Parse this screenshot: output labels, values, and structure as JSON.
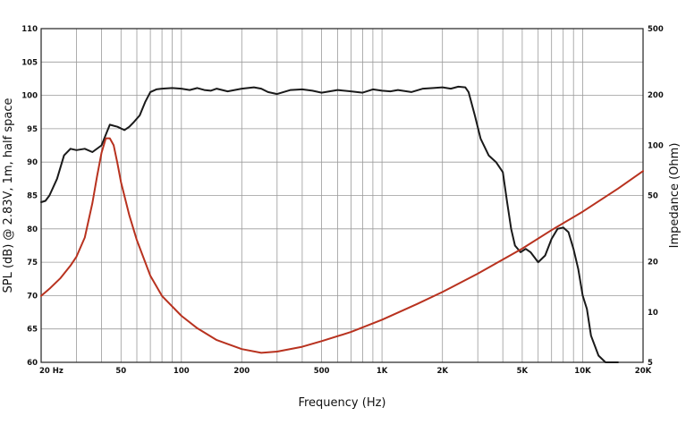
{
  "chart_data": {
    "type": "line",
    "xlabel": "Frequency (Hz)",
    "ylabel": "SPL (dB) @ 2.83V, 1m, half space",
    "y2label": "Impedance (Ohm)",
    "x_scale": "log",
    "xlim": [
      20,
      20000
    ],
    "ylim": [
      60,
      110
    ],
    "y2_scale": "log",
    "y2lim": [
      5,
      500
    ],
    "grid": true,
    "x_tick_labels": [
      {
        "value": 20,
        "label": "20  Hz"
      },
      {
        "value": 50,
        "label": "50"
      },
      {
        "value": 100,
        "label": "100"
      },
      {
        "value": 200,
        "label": "200"
      },
      {
        "value": 500,
        "label": "500"
      },
      {
        "value": 1000,
        "label": "1K"
      },
      {
        "value": 2000,
        "label": "2K"
      },
      {
        "value": 5000,
        "label": "5K"
      },
      {
        "value": 10000,
        "label": "10K"
      },
      {
        "value": 20000,
        "label": "20K"
      }
    ],
    "x_gridlines": [
      20,
      30,
      40,
      50,
      60,
      70,
      80,
      90,
      100,
      200,
      300,
      400,
      500,
      600,
      700,
      800,
      900,
      1000,
      2000,
      3000,
      4000,
      5000,
      6000,
      7000,
      8000,
      9000,
      10000,
      20000
    ],
    "y_ticks": [
      {
        "value": 110,
        "label": "110"
      },
      {
        "value": 105,
        "label": "105"
      },
      {
        "value": 100,
        "label": "100"
      },
      {
        "value": 95,
        "label": "95"
      },
      {
        "value": 90,
        "label": "90"
      },
      {
        "value": 85,
        "label": "85"
      },
      {
        "value": 80,
        "label": "80"
      },
      {
        "value": 75,
        "label": "75"
      },
      {
        "value": 70,
        "label": "70"
      },
      {
        "value": 65,
        "label": "65"
      },
      {
        "value": 60,
        "label": "60"
      }
    ],
    "y2_ticks": [
      {
        "value": 500,
        "label": "500"
      },
      {
        "value": 200,
        "label": "200"
      },
      {
        "value": 100,
        "label": "100"
      },
      {
        "value": 50,
        "label": "50"
      },
      {
        "value": 20,
        "label": "20"
      },
      {
        "value": 10,
        "label": "10"
      },
      {
        "value": 5,
        "label": "5"
      }
    ],
    "series": [
      {
        "axis": "left",
        "color": "#1a1a1a",
        "x": [
          20,
          21,
          22,
          24,
          26,
          28,
          30,
          33,
          36,
          40,
          44,
          48,
          52,
          55,
          58,
          62,
          66,
          70,
          75,
          80,
          90,
          100,
          110,
          120,
          130,
          140,
          150,
          170,
          200,
          230,
          250,
          270,
          300,
          350,
          400,
          450,
          500,
          600,
          700,
          800,
          900,
          1000,
          1100,
          1200,
          1400,
          1600,
          1800,
          2000,
          2200,
          2400,
          2600,
          2700,
          2900,
          3100,
          3400,
          3700,
          4000,
          4200,
          4400,
          4600,
          4900,
          5200,
          5500,
          6000,
          6500,
          7000,
          7500,
          8000,
          8500,
          9000,
          9500,
          10000,
          10500,
          11000,
          12000,
          13000,
          14000,
          15000
        ],
        "y": [
          84,
          84.2,
          85,
          87.5,
          91,
          92,
          91.8,
          92,
          91.5,
          92.5,
          95.6,
          95.3,
          94.8,
          95.3,
          96,
          97,
          99,
          100.5,
          100.9,
          101,
          101.1,
          101,
          100.8,
          101.1,
          100.8,
          100.7,
          101,
          100.6,
          101,
          101.2,
          101,
          100.5,
          100.2,
          100.8,
          100.9,
          100.7,
          100.4,
          100.8,
          100.6,
          100.4,
          100.9,
          100.7,
          100.6,
          100.8,
          100.5,
          101,
          101.1,
          101.2,
          101,
          101.3,
          101.2,
          100.5,
          97,
          93.5,
          91,
          90,
          88.5,
          84,
          80,
          77.5,
          76.5,
          77,
          76.5,
          75,
          76,
          78.5,
          80,
          80.2,
          79.5,
          77,
          74,
          70,
          68,
          64,
          61,
          60,
          59,
          58
        ]
      },
      {
        "axis": "right",
        "color": "#b8321f",
        "x": [
          20,
          22,
          25,
          28,
          30,
          33,
          36,
          38,
          40,
          42,
          44,
          46,
          48,
          50,
          55,
          60,
          70,
          80,
          100,
          120,
          150,
          200,
          250,
          300,
          400,
          500,
          700,
          1000,
          1500,
          2000,
          3000,
          5000,
          7000,
          10000,
          15000,
          20000
        ],
        "y": [
          12.5,
          13.8,
          16,
          19,
          21.5,
          28,
          45,
          65,
          90,
          110,
          110,
          100,
          78,
          60,
          38,
          27,
          16.5,
          12.5,
          9.5,
          8,
          6.8,
          6,
          5.7,
          5.8,
          6.2,
          6.7,
          7.6,
          9,
          11.2,
          13.2,
          17,
          24,
          31,
          40,
          55,
          70
        ]
      }
    ]
  }
}
